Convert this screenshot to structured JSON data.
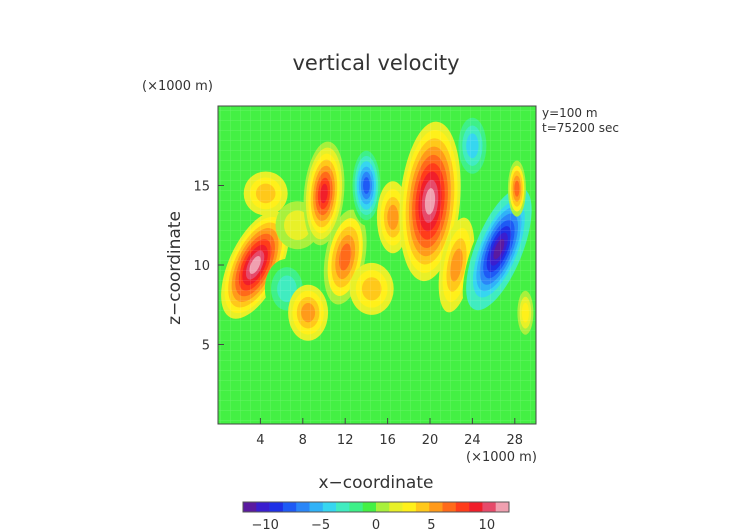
{
  "chart_data": {
    "type": "heatmap",
    "title": "vertical velocity",
    "xlabel": "x−coordinate",
    "ylabel": "z−coordinate",
    "x_unit": "(×1000 m)",
    "y_unit": "(×1000 m)",
    "annotations": [
      "y=100  m",
      "t=75200  sec"
    ],
    "xlim": [
      0,
      30
    ],
    "ylim": [
      0,
      20
    ],
    "x_ticks": [
      4,
      8,
      12,
      16,
      20,
      24,
      28
    ],
    "y_ticks": [
      5,
      10,
      15
    ],
    "x_tick_labels": [
      "4",
      "8",
      "12",
      "16",
      "20",
      "24",
      "28"
    ],
    "y_tick_labels": [
      "5",
      "10",
      "15"
    ],
    "colorbar": {
      "min": -12,
      "max": 12,
      "ticks": [
        -10,
        -5,
        0,
        5,
        10
      ],
      "tick_labels": [
        "−10",
        "−5",
        "0",
        "5",
        "10"
      ],
      "colors": [
        "#5a1aa0",
        "#3a1ecf",
        "#1e30e6",
        "#1e5af5",
        "#2a86f8",
        "#30b2f8",
        "#36d6f0",
        "#40ecc0",
        "#3ef088",
        "#44f044",
        "#a8f03c",
        "#e8f028",
        "#fff01a",
        "#ffc81a",
        "#ff9a1a",
        "#ff6a1a",
        "#ff3c1a",
        "#f01e2a",
        "#e64a6a",
        "#f0a0b0"
      ]
    },
    "features": [
      {
        "x": 3.5,
        "y": 10,
        "value": 11
      },
      {
        "x": 4.5,
        "y": 14.5,
        "value": 4
      },
      {
        "x": 6.5,
        "y": 8.5,
        "value": -3
      },
      {
        "x": 7.5,
        "y": 12.5,
        "value": 2
      },
      {
        "x": 8.5,
        "y": 7,
        "value": 5
      },
      {
        "x": 10,
        "y": 14.5,
        "value": 9
      },
      {
        "x": 12,
        "y": 10.5,
        "value": 6
      },
      {
        "x": 14,
        "y": 15,
        "value": -8
      },
      {
        "x": 14.5,
        "y": 8.5,
        "value": 4
      },
      {
        "x": 16.5,
        "y": 13,
        "value": 5
      },
      {
        "x": 20,
        "y": 14,
        "value": 11
      },
      {
        "x": 22.5,
        "y": 10,
        "value": 5
      },
      {
        "x": 24,
        "y": 17.5,
        "value": -4
      },
      {
        "x": 26.5,
        "y": 11,
        "value": -12
      },
      {
        "x": 28.2,
        "y": 14.8,
        "value": 6
      },
      {
        "x": 29,
        "y": 7,
        "value": 3
      },
      {
        "x": 2,
        "y": 4,
        "value": -1
      }
    ]
  }
}
